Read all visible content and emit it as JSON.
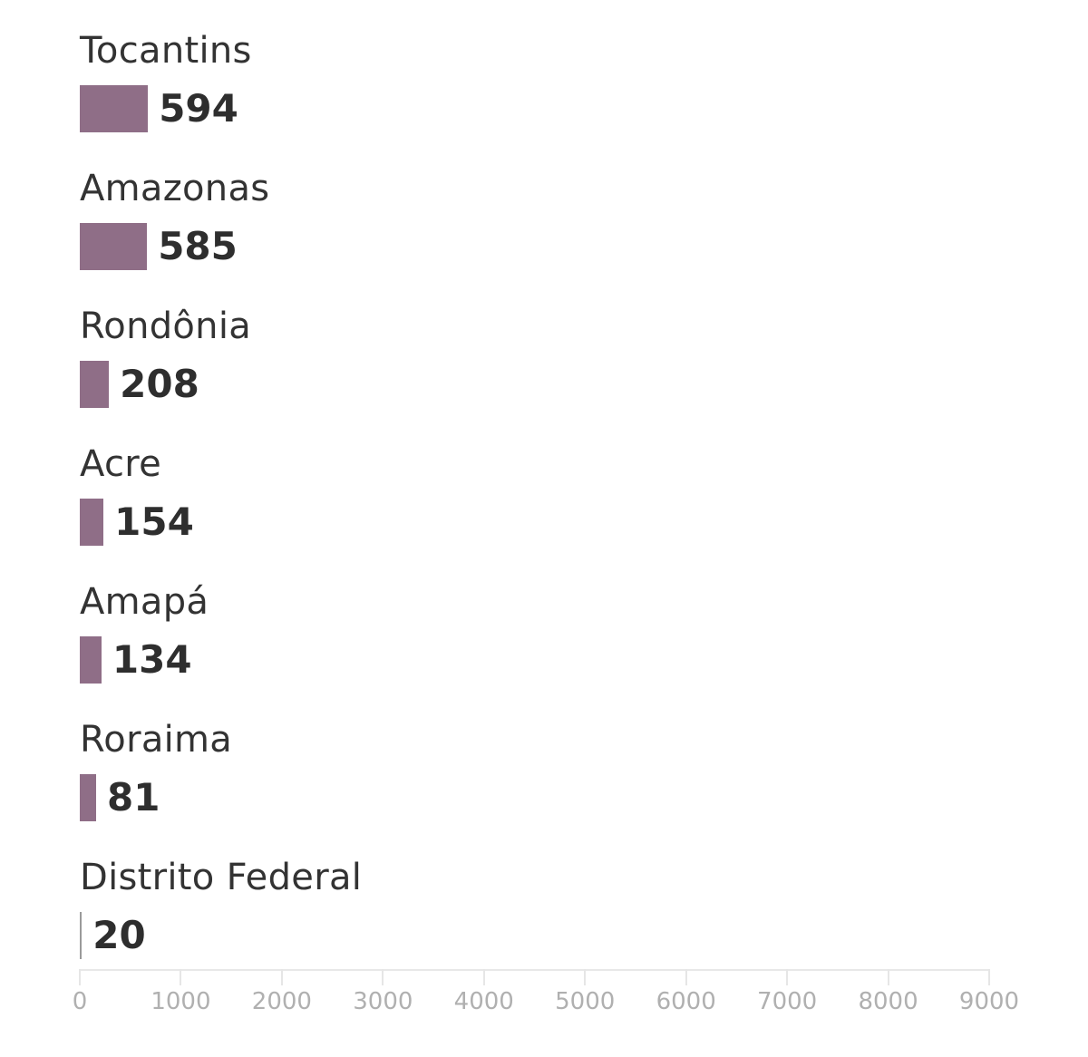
{
  "chart_data": {
    "type": "bar",
    "orientation": "horizontal",
    "title": "",
    "xlabel": "",
    "ylabel": "",
    "categories": [
      "Tocantins",
      "Amazonas",
      "Rondônia",
      "Acre",
      "Amapá",
      "Roraima",
      "Distrito Federal"
    ],
    "values": [
      594,
      585,
      208,
      154,
      134,
      81,
      20
    ],
    "value_labels": [
      "594",
      "585",
      "208",
      "154",
      "134",
      "81",
      "20"
    ],
    "bar_colors": [
      "#8f6e87",
      "#8f6e87",
      "#8f6e87",
      "#8f6e87",
      "#8f6e87",
      "#8f6e87",
      "#9a9a9a"
    ],
    "xlim": [
      0,
      9000
    ],
    "x_ticks": [
      0,
      1000,
      2000,
      3000,
      4000,
      5000,
      6000,
      7000,
      8000,
      9000
    ],
    "x_tick_labels": [
      "0",
      "1000",
      "2000",
      "3000",
      "4000",
      "5000",
      "6000",
      "7000",
      "8000",
      "9000"
    ],
    "grid": false,
    "legend": null
  },
  "colors": {
    "bar": "#8f6e87",
    "bar_highlight_gray": "#9a9a9a",
    "label_text": "#333333",
    "value_text": "#2e2e2e",
    "axis": "#e8e8e8",
    "tick_text": "#b0b0b0"
  }
}
